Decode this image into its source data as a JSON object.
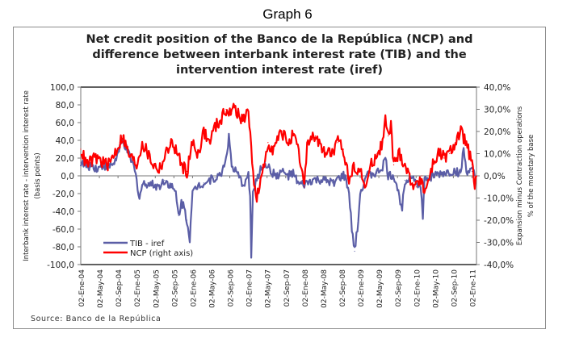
{
  "page": {
    "graph_label": "Graph 6",
    "source": "Source: Banco de la República"
  },
  "chart_data": {
    "type": "line",
    "title_lines": [
      "Net credit position of the Banco de la República (NCP) and",
      "difference between interbank interest rate (TIB) and the",
      "intervention interest rate (iref)"
    ],
    "ylabel_left": [
      "Interbank interest rate - intervention interest rate",
      "(basis points)"
    ],
    "ylabel_right": [
      "Expansion minus Contraction operations",
      "% of the monetary base"
    ],
    "ylim_left": [
      -100,
      100
    ],
    "ylim_right": [
      -40,
      40
    ],
    "xlim": [
      2004.0,
      2011.08
    ],
    "left_ticks": [
      "100,0",
      "80,0",
      "60,0",
      "40,0",
      "20,0",
      "0,0",
      "-20,0",
      "-40,0",
      "-60,0",
      "-80,0",
      "-100,0"
    ],
    "right_ticks": [
      "40,0%",
      "30,0%",
      "20,0%",
      "10,0%",
      "0,0%",
      "-10,0%",
      "-20,0%",
      "-30,0%",
      "-40,0%"
    ],
    "x_tick_labels": [
      "02-Ene-04",
      "02-May-04",
      "02-Sep-04",
      "02-Ene-05",
      "02-May-05",
      "02-Sep-05",
      "02-Ene-06",
      "02-May-06",
      "02-Sep-06",
      "02-Ene-07",
      "02-May-07",
      "02-Sep-07",
      "02-Ene-08",
      "02-May-08",
      "02-Sep-08",
      "02-Ene-09",
      "02-May-09",
      "02-Sep-09",
      "02-Ene-10",
      "02-May-10",
      "02-Sep-10",
      "02-Ene-11"
    ],
    "legend_position": "bottom-left",
    "grid": false,
    "series": [
      {
        "name": "TIB - iref",
        "axis": "left",
        "color": "#5b5ea6",
        "x": [
          2004.0,
          2004.1,
          2004.2,
          2004.3,
          2004.4,
          2004.5,
          2004.6,
          2004.7,
          2004.75,
          2004.85,
          2004.95,
          2005.0,
          2005.05,
          2005.1,
          2005.2,
          2005.3,
          2005.4,
          2005.5,
          2005.6,
          2005.7,
          2005.75,
          2005.8,
          2005.85,
          2005.9,
          2005.95,
          2006.0,
          2006.1,
          2006.2,
          2006.3,
          2006.4,
          2006.5,
          2006.6,
          2006.65,
          2006.7,
          2006.8,
          2006.9,
          2007.0,
          2007.03,
          2007.05,
          2007.08,
          2007.15,
          2007.2,
          2007.3,
          2007.4,
          2007.5,
          2007.6,
          2007.7,
          2007.8,
          2007.9,
          2008.0,
          2008.15,
          2008.3,
          2008.5,
          2008.7,
          2008.75,
          2008.8,
          2008.85,
          2008.9,
          2008.95,
          2009.0,
          2009.1,
          2009.2,
          2009.3,
          2009.4,
          2009.45,
          2009.5,
          2009.6,
          2009.65,
          2009.7,
          2009.75,
          2009.8,
          2009.9,
          2010.0,
          2010.08,
          2010.12,
          2010.15,
          2010.3,
          2010.5,
          2010.7,
          2010.8,
          2010.85,
          2010.9,
          2011.0,
          2011.05
        ],
        "values": [
          15,
          10,
          12,
          8,
          12,
          10,
          15,
          30,
          40,
          25,
          10,
          -5,
          -25,
          -10,
          -8,
          -10,
          -12,
          -5,
          -10,
          -20,
          -45,
          -30,
          -35,
          -50,
          -70,
          -20,
          -10,
          -8,
          -5,
          -2,
          0,
          20,
          45,
          10,
          2,
          -10,
          0,
          -20,
          -90,
          -20,
          -5,
          5,
          15,
          5,
          0,
          5,
          0,
          2,
          -10,
          -10,
          -5,
          -5,
          -8,
          0,
          -5,
          -20,
          -60,
          -85,
          -60,
          -20,
          0,
          2,
          3,
          10,
          20,
          0,
          0,
          -10,
          -25,
          -35,
          -5,
          0,
          -5,
          -15,
          -45,
          -5,
          0,
          3,
          5,
          3,
          30,
          5,
          5,
          0
        ]
      },
      {
        "name": "NCP (right axis)",
        "axis": "right",
        "color": "#ff0000",
        "x": [
          2004.0,
          2004.1,
          2004.2,
          2004.3,
          2004.4,
          2004.5,
          2004.6,
          2004.7,
          2004.75,
          2004.85,
          2005.0,
          2005.1,
          2005.2,
          2005.3,
          2005.4,
          2005.5,
          2005.6,
          2005.7,
          2005.8,
          2005.9,
          2006.0,
          2006.1,
          2006.2,
          2006.3,
          2006.4,
          2006.5,
          2006.6,
          2006.7,
          2006.75,
          2006.85,
          2007.0,
          2007.05,
          2007.1,
          2007.15,
          2007.25,
          2007.35,
          2007.45,
          2007.6,
          2007.7,
          2007.8,
          2007.9,
          2008.0,
          2008.05,
          2008.2,
          2008.3,
          2008.5,
          2008.6,
          2008.7,
          2008.8,
          2008.9,
          2009.0,
          2009.1,
          2009.2,
          2009.3,
          2009.4,
          2009.45,
          2009.5,
          2009.55,
          2009.6,
          2009.7,
          2009.8,
          2009.9,
          2010.0,
          2010.1,
          2010.15,
          2010.3,
          2010.4,
          2010.5,
          2010.6,
          2010.7,
          2010.8,
          2010.9,
          2011.0,
          2011.05,
          2011.08
        ],
        "values": [
          12,
          5,
          7,
          8,
          6,
          5,
          10,
          15,
          18,
          10,
          5,
          15,
          10,
          5,
          3,
          8,
          15,
          12,
          5,
          2,
          15,
          10,
          20,
          15,
          22,
          25,
          30,
          28,
          32,
          25,
          28,
          15,
          -5,
          -10,
          0,
          15,
          12,
          20,
          15,
          18,
          10,
          -5,
          15,
          18,
          12,
          10,
          15,
          12,
          -2,
          5,
          2,
          -5,
          5,
          10,
          15,
          25,
          18,
          22,
          5,
          10,
          5,
          -2,
          -5,
          0,
          -8,
          5,
          10,
          8,
          10,
          15,
          20,
          15,
          5,
          -5,
          0
        ]
      }
    ]
  }
}
